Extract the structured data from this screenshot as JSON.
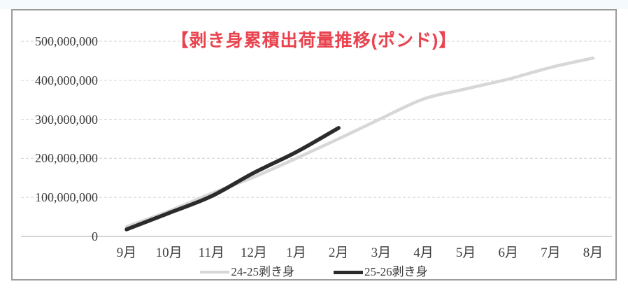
{
  "chart_data": {
    "type": "line",
    "title": "【剥き身累積出荷量推移(ポンド)】",
    "title_color": "#e8434f",
    "categories": [
      "9月",
      "10月",
      "11月",
      "12月",
      "1月",
      "2月",
      "3月",
      "4月",
      "5月",
      "6月",
      "7月",
      "8月"
    ],
    "series": [
      {
        "name": "24-25剥き身",
        "color": "#d7d7d7",
        "stroke_width": 4.5,
        "values": [
          25000000,
          65000000,
          110000000,
          152000000,
          200000000,
          250000000,
          302000000,
          352000000,
          378000000,
          403000000,
          433000000,
          457000000
        ]
      },
      {
        "name": "25-26剥き身",
        "color": "#2b2b2b",
        "stroke_width": 5.5,
        "values": [
          18000000,
          60000000,
          103000000,
          163000000,
          216000000,
          278000000
        ]
      }
    ],
    "y_axis": {
      "tick_values": [
        0,
        100000000,
        200000000,
        300000000,
        400000000,
        500000000
      ],
      "tick_labels": [
        "0",
        "100,000,000",
        "200,000,000",
        "300,000,000",
        "400,000,000",
        "500,000,000"
      ]
    },
    "ylim": [
      0,
      500000000
    ],
    "grid": "horizontal-dashed",
    "gridline_color": "#d9d9d9",
    "axis_line_color": "#c6c6c6",
    "legend_position": "bottom"
  }
}
